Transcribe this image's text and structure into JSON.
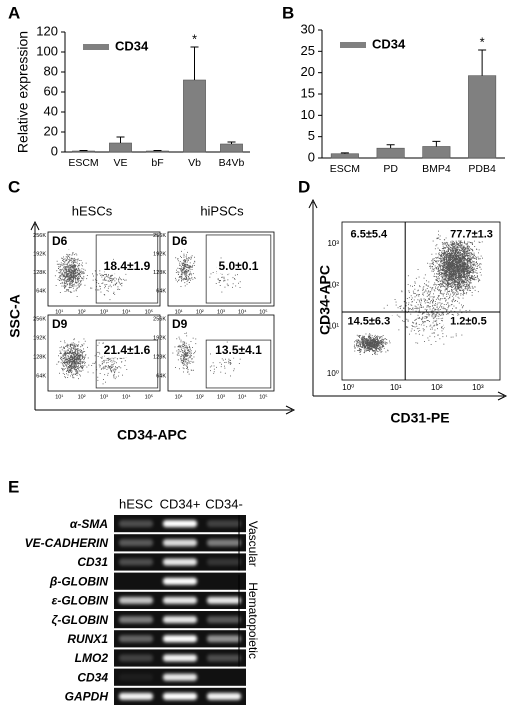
{
  "chart_data": [
    {
      "type": "bar",
      "panel": "A",
      "ylabel": "Relative expression",
      "categories": [
        "ESCM",
        "VE",
        "bF",
        "Vb",
        "B4Vb"
      ],
      "series": [
        {
          "name": "CD34",
          "color": "#808080",
          "values": [
            1,
            9,
            1,
            72,
            8
          ],
          "errors": [
            0.5,
            6,
            0.5,
            33,
            2
          ]
        }
      ],
      "ylim": [
        0,
        120
      ],
      "yticks": [
        0,
        20,
        40,
        60,
        80,
        100,
        120
      ],
      "annotations": [
        {
          "text": "*",
          "x": "Vb"
        }
      ]
    },
    {
      "type": "bar",
      "panel": "B",
      "categories": [
        "ESCM",
        "PD",
        "BMP4",
        "PDB4"
      ],
      "series": [
        {
          "name": "CD34",
          "color": "#808080",
          "values": [
            1,
            2.3,
            2.7,
            19.3
          ],
          "errors": [
            0.2,
            0.8,
            1.2,
            6
          ]
        }
      ],
      "ylim": [
        0,
        30
      ],
      "yticks": [
        0,
        5,
        10,
        15,
        20,
        25,
        30
      ],
      "annotations": [
        {
          "text": "*",
          "x": "PDB4"
        }
      ]
    }
  ],
  "flow_c": {
    "panel": "C",
    "columns": [
      "hESCs",
      "hiPSCs"
    ],
    "ylabel": "SSC-A",
    "xlabel": "CD34-APC",
    "yticks": [
      "256K",
      "192K",
      "128K",
      "64K"
    ],
    "xticks": [
      "10¹",
      "10²",
      "10³",
      "10⁴",
      "10⁵"
    ],
    "plots": [
      {
        "day": "D6",
        "gate": "18.4±1.9"
      },
      {
        "day": "D6",
        "gate": "5.0±0.1"
      },
      {
        "day": "D9",
        "gate": "21.4±1.6"
      },
      {
        "day": "D9",
        "gate": "13.5±4.1"
      }
    ]
  },
  "flow_d": {
    "panel": "D",
    "ylabel": "CD34-APC",
    "xlabel": "CD31-PE",
    "ticks": [
      "10⁰",
      "10¹",
      "10²",
      "10³"
    ],
    "quadrants": [
      "6.5±5.4",
      "77.7±1.3",
      "14.5±6.3",
      "1.2±0.5"
    ]
  },
  "gel_e": {
    "panel": "E",
    "lanes": [
      "hESC",
      "CD34+",
      "CD34-"
    ],
    "genes": [
      "α-SMA",
      "VE-CADHERIN",
      "CD31",
      "β-GLOBIN",
      "ε-GLOBIN",
      "ζ-GLOBIN",
      "RUNX1",
      "LMO2",
      "CD34",
      "GAPDH"
    ],
    "groups": [
      "Vascular",
      "Hematopoietic"
    ]
  }
}
